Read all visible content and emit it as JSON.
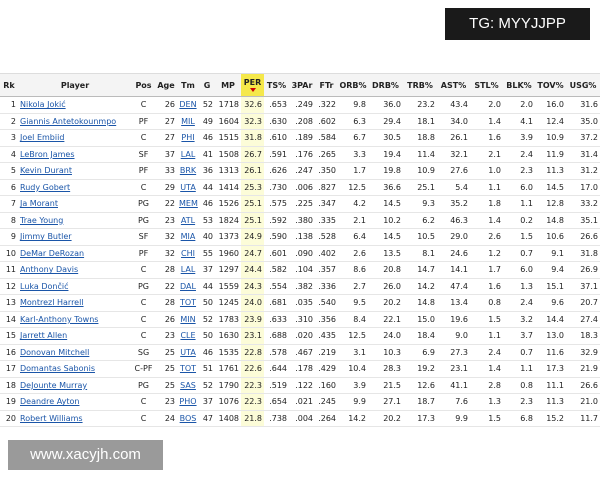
{
  "watermarks": {
    "top": "TG: MYYJJPP",
    "bottom": "www.xacyjh.com"
  },
  "table": {
    "columns": [
      "Rk",
      "Player",
      "Pos",
      "Age",
      "Tm",
      "G",
      "MP",
      "PER",
      "TS%",
      "3PAr",
      "FTr",
      "ORB%",
      "DRB%",
      "TRB%",
      "AST%",
      "STL%",
      "BLK%",
      "TOV%",
      "USG%"
    ],
    "rows": [
      [
        "1",
        "Nikola Jokić",
        "C",
        "26",
        "DEN",
        "52",
        "1718",
        "32.6",
        ".653",
        ".249",
        ".322",
        "9.8",
        "36.0",
        "23.2",
        "43.4",
        "2.0",
        "2.0",
        "16.0",
        "31.6"
      ],
      [
        "2",
        "Giannis Antetokounmpo",
        "PF",
        "27",
        "MIL",
        "49",
        "1604",
        "32.3",
        ".630",
        ".208",
        ".602",
        "6.3",
        "29.4",
        "18.1",
        "34.0",
        "1.4",
        "4.1",
        "12.4",
        "35.0"
      ],
      [
        "3",
        "Joel Embiid",
        "C",
        "27",
        "PHI",
        "46",
        "1515",
        "31.8",
        ".610",
        ".189",
        ".584",
        "6.7",
        "30.5",
        "18.8",
        "26.1",
        "1.6",
        "3.9",
        "10.9",
        "37.2"
      ],
      [
        "4",
        "LeBron James",
        "SF",
        "37",
        "LAL",
        "41",
        "1508",
        "26.7",
        ".591",
        ".176",
        ".265",
        "3.3",
        "19.4",
        "11.4",
        "32.1",
        "2.1",
        "2.4",
        "11.9",
        "31.4"
      ],
      [
        "5",
        "Kevin Durant",
        "PF",
        "33",
        "BRK",
        "36",
        "1313",
        "26.1",
        ".626",
        ".247",
        ".350",
        "1.7",
        "19.8",
        "10.9",
        "27.6",
        "1.0",
        "2.3",
        "11.3",
        "31.2"
      ],
      [
        "6",
        "Rudy Gobert",
        "C",
        "29",
        "UTA",
        "44",
        "1414",
        "25.3",
        ".730",
        ".006",
        ".827",
        "12.5",
        "36.6",
        "25.1",
        "5.4",
        "1.1",
        "6.0",
        "14.5",
        "17.0"
      ],
      [
        "7",
        "Ja Morant",
        "PG",
        "22",
        "MEM",
        "46",
        "1526",
        "25.1",
        ".575",
        ".225",
        ".347",
        "4.2",
        "14.5",
        "9.3",
        "35.2",
        "1.8",
        "1.1",
        "12.8",
        "33.2"
      ],
      [
        "8",
        "Trae Young",
        "PG",
        "23",
        "ATL",
        "53",
        "1824",
        "25.1",
        ".592",
        ".380",
        ".335",
        "2.1",
        "10.2",
        "6.2",
        "46.3",
        "1.4",
        "0.2",
        "14.8",
        "35.1"
      ],
      [
        "9",
        "Jimmy Butler",
        "SF",
        "32",
        "MIA",
        "40",
        "1373",
        "24.9",
        ".590",
        ".138",
        ".528",
        "6.4",
        "14.5",
        "10.5",
        "29.0",
        "2.6",
        "1.5",
        "10.6",
        "26.6"
      ],
      [
        "10",
        "DeMar DeRozan",
        "PF",
        "32",
        "CHI",
        "55",
        "1960",
        "24.7",
        ".601",
        ".090",
        ".402",
        "2.6",
        "13.5",
        "8.1",
        "24.6",
        "1.2",
        "0.7",
        "9.1",
        "31.8"
      ],
      [
        "11",
        "Anthony Davis",
        "C",
        "28",
        "LAL",
        "37",
        "1297",
        "24.4",
        ".582",
        ".104",
        ".357",
        "8.6",
        "20.8",
        "14.7",
        "14.1",
        "1.7",
        "6.0",
        "9.4",
        "26.9"
      ],
      [
        "12",
        "Luka Dončić",
        "PG",
        "22",
        "DAL",
        "44",
        "1559",
        "24.3",
        ".554",
        ".382",
        ".336",
        "2.7",
        "26.0",
        "14.2",
        "47.4",
        "1.6",
        "1.3",
        "15.1",
        "37.1"
      ],
      [
        "13",
        "Montrezl Harrell",
        "C",
        "28",
        "TOT",
        "50",
        "1245",
        "24.0",
        ".681",
        ".035",
        ".540",
        "9.5",
        "20.2",
        "14.8",
        "13.4",
        "0.8",
        "2.4",
        "9.6",
        "20.7"
      ],
      [
        "14",
        "Karl-Anthony Towns",
        "C",
        "26",
        "MIN",
        "52",
        "1783",
        "23.9",
        ".633",
        ".310",
        ".356",
        "8.4",
        "22.1",
        "15.0",
        "19.6",
        "1.5",
        "3.2",
        "14.4",
        "27.4"
      ],
      [
        "15",
        "Jarrett Allen",
        "C",
        "23",
        "CLE",
        "50",
        "1630",
        "23.1",
        ".688",
        ".020",
        ".435",
        "12.5",
        "24.0",
        "18.4",
        "9.0",
        "1.1",
        "3.7",
        "13.0",
        "18.3"
      ],
      [
        "16",
        "Donovan Mitchell",
        "SG",
        "25",
        "UTA",
        "46",
        "1535",
        "22.8",
        ".578",
        ".467",
        ".219",
        "3.1",
        "10.3",
        "6.9",
        "27.3",
        "2.4",
        "0.7",
        "11.6",
        "32.9"
      ],
      [
        "17",
        "Domantas Sabonis",
        "C-PF",
        "25",
        "TOT",
        "51",
        "1761",
        "22.6",
        ".644",
        ".178",
        ".429",
        "10.4",
        "28.3",
        "19.2",
        "23.1",
        "1.4",
        "1.1",
        "17.3",
        "21.9"
      ],
      [
        "18",
        "DeJounte Murray",
        "PG",
        "25",
        "SAS",
        "52",
        "1790",
        "22.3",
        ".519",
        ".122",
        ".160",
        "3.9",
        "21.5",
        "12.6",
        "41.1",
        "2.8",
        "0.8",
        "11.1",
        "26.6"
      ],
      [
        "19",
        "Deandre Ayton",
        "C",
        "23",
        "PHO",
        "37",
        "1076",
        "22.3",
        ".654",
        ".021",
        ".245",
        "9.9",
        "27.1",
        "18.7",
        "7.6",
        "1.3",
        "2.3",
        "11.3",
        "21.0"
      ],
      [
        "20",
        "Robert Williams",
        "C",
        "24",
        "BOS",
        "47",
        "1408",
        "21.8",
        ".738",
        ".004",
        ".264",
        "14.2",
        "20.2",
        "17.3",
        "9.9",
        "1.5",
        "6.8",
        "15.2",
        "11.7"
      ]
    ]
  }
}
